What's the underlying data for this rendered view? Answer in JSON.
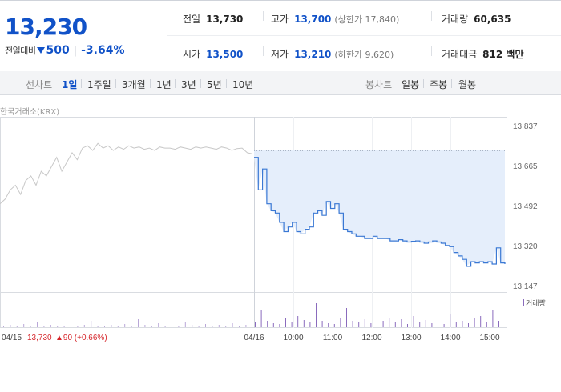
{
  "summary": {
    "price": "13,230",
    "change_label": "전일대비",
    "change_value": "500",
    "change_pct": "-3.64%",
    "prev_close": {
      "label": "전일",
      "value": "13,730"
    },
    "high": {
      "label": "고가",
      "value": "13,700",
      "sub": "(상한가 17,840)"
    },
    "volume": {
      "label": "거래량",
      "value": "60,635"
    },
    "open": {
      "label": "시가",
      "value": "13,500"
    },
    "low": {
      "label": "저가",
      "value": "13,210",
      "sub": "(하한가 9,620)"
    },
    "amount": {
      "label": "거래대금",
      "value": "812 백만"
    }
  },
  "tabs": {
    "line_label": "선차트",
    "line": [
      "1일",
      "1주일",
      "3개월",
      "1년",
      "3년",
      "5년",
      "10년"
    ],
    "active": "1일",
    "candle_label": "봉차트",
    "candle": [
      "일봉",
      "주봉",
      "월봉"
    ]
  },
  "source": "한국거래소(KRX)",
  "colors": {
    "accent": "#1152c8",
    "up": "#d6262b",
    "area": "#e5eefb",
    "line": "#3a78d4",
    "prev_line": "#c8c8c8",
    "volume": "#8a6bbd"
  },
  "chart_data": {
    "type": "line",
    "ylim": [
      13147,
      13837
    ],
    "yticks": [
      "13,837",
      "13,665",
      "13,492",
      "13,320",
      "13,147"
    ],
    "xticks": [
      "04/15",
      "04/16",
      "10:00",
      "11:00",
      "12:00",
      "13:00",
      "14:00",
      "15:00"
    ],
    "prev_close_level": 13730,
    "prev_day_label": {
      "date": "04/15",
      "price": "13,730",
      "change": "▲90 (+0.66%)"
    },
    "series": [
      {
        "values": [
          13500,
          13520,
          13560,
          13580,
          13540,
          13600,
          13620,
          13580,
          13640,
          13620,
          13660,
          13700,
          13640,
          13680,
          13720,
          13690,
          13740,
          13750,
          13730,
          13760,
          13740,
          13750,
          13730,
          13745,
          13735,
          13750,
          13740,
          13745,
          13735,
          13740,
          13730,
          13745,
          13740,
          13740,
          13735,
          13745,
          13740,
          13735,
          13745,
          13740,
          13745,
          13740,
          13735,
          13745,
          13740,
          13730,
          13738,
          13740,
          13720,
          13715
        ]
      },
      {
        "values": [
          13700,
          13560,
          13650,
          13500,
          13470,
          13460,
          13420,
          13380,
          13400,
          13420,
          13380,
          13370,
          13390,
          13400,
          13460,
          13470,
          13450,
          13510,
          13480,
          13500,
          13460,
          13390,
          13380,
          13370,
          13360,
          13360,
          13350,
          13350,
          13360,
          13350,
          13350,
          13350,
          13340,
          13340,
          13345,
          13340,
          13335,
          13338,
          13340,
          13335,
          13330,
          13335,
          13340,
          13335,
          13330,
          13320,
          13315,
          13290,
          13275,
          13260,
          13230,
          13250,
          13245,
          13250,
          13245,
          13250,
          13240,
          13310,
          13245,
          13240
        ]
      }
    ],
    "volume_series": {
      "name": "거래량"
    }
  }
}
